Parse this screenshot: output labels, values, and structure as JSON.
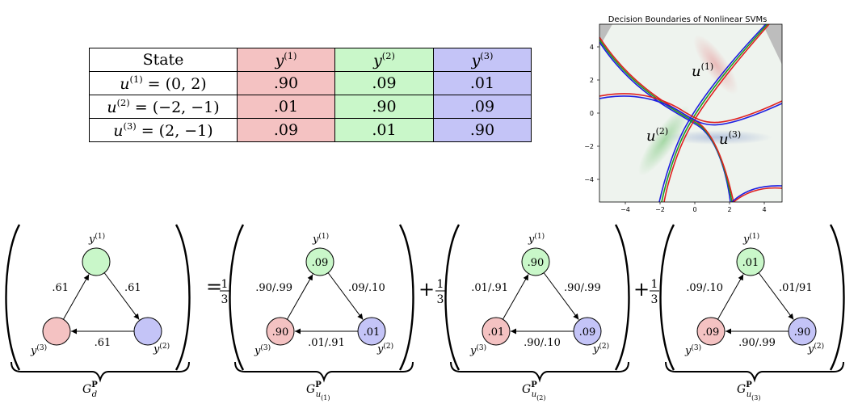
{
  "colors": {
    "red": "#f4c2c2",
    "green": "#c9f7c9",
    "blue": "#c4c4f7",
    "plot_bg": "#eef3ee",
    "boundary_red": "#e02020",
    "boundary_green": "#1f9a1f",
    "boundary_blue": "#1f1fe0"
  },
  "table": {
    "header": {
      "state": "State",
      "cols": [
        "y",
        "y",
        "y"
      ],
      "col_sups": [
        "(1)",
        "(2)",
        "(3)"
      ]
    },
    "rows": [
      {
        "label": "u",
        "sup": "(1)",
        "rest": " = (0, 2)",
        "values": [
          ".90",
          ".09",
          ".01"
        ]
      },
      {
        "label": "u",
        "sup": "(2)",
        "rest": " = (−2, −1)",
        "values": [
          ".01",
          ".90",
          ".09"
        ]
      },
      {
        "label": "u",
        "sup": "(3)",
        "rest": " = (2, −1)",
        "values": [
          ".09",
          ".01",
          ".90"
        ]
      }
    ]
  },
  "svm_plot": {
    "title": "Decision Boundaries of Nonlinear SVMs",
    "x_ticks": [
      "−4",
      "−2",
      "0",
      "2",
      "4"
    ],
    "y_ticks": [
      "4",
      "2",
      "0",
      "−2",
      "−4"
    ],
    "xlim": [
      -5,
      5
    ],
    "ylim": [
      -5,
      5
    ],
    "point_labels": [
      {
        "base": "u",
        "sup": "(1)"
      },
      {
        "base": "u",
        "sup": "(2)"
      },
      {
        "base": "u",
        "sup": "(3)"
      }
    ]
  },
  "operators": {
    "equals": "=",
    "plus": "+",
    "frac_num": "1",
    "frac_den": "3"
  },
  "graphs": [
    {
      "name": "G",
      "sup": "P",
      "sub": "d",
      "subsub": "",
      "node_labels": {
        "top": "y(1)",
        "left": "y(3)",
        "right": "y(2)"
      },
      "node_values": {
        "top": "",
        "left": "",
        "right": ""
      },
      "edges": {
        "left": ".61",
        "right": ".61",
        "bottom": ".61"
      }
    },
    {
      "name": "G",
      "sup": "P",
      "sub": "u",
      "subsub": "(1)",
      "node_labels": {
        "top": "y(1)",
        "left": "y(3)",
        "right": "y(2)"
      },
      "node_values": {
        "top": ".09",
        "left": ".90",
        "right": ".01"
      },
      "edges": {
        "left": ".90/.99",
        "right": ".09/.10",
        "bottom": ".01/.91"
      }
    },
    {
      "name": "G",
      "sup": "P",
      "sub": "u",
      "subsub": "(2)",
      "node_labels": {
        "top": "y(1)",
        "left": "y(3)",
        "right": "y(2)"
      },
      "node_values": {
        "top": ".90",
        "left": ".01",
        "right": ".09"
      },
      "edges": {
        "left": ".01/.91",
        "right": ".90/.99",
        "bottom": ".90/.10"
      }
    },
    {
      "name": "G",
      "sup": "P",
      "sub": "u",
      "subsub": "(3)",
      "node_labels": {
        "top": "y(1)",
        "left": "y(3)",
        "right": "y(2)"
      },
      "node_values": {
        "top": ".01",
        "left": ".09",
        "right": ".90"
      },
      "edges": {
        "left": ".09/.10",
        "right": ".01/91",
        "bottom": ".90/.99"
      }
    }
  ]
}
